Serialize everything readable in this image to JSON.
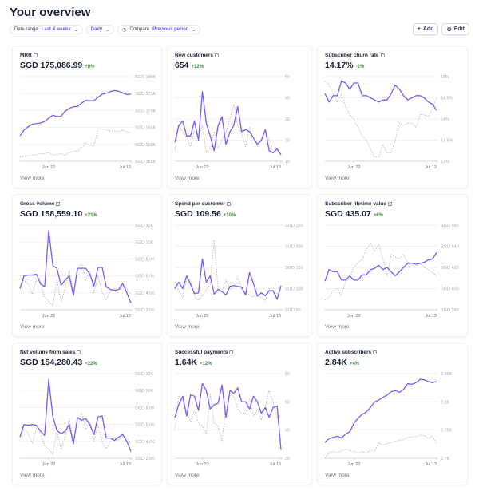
{
  "header": {
    "title": "Your overview",
    "add_label": "Add",
    "edit_label": "Edit"
  },
  "filters": {
    "date_range_label": "Date range",
    "date_range_value": "Last 4 weeks",
    "interval_value": "Daily",
    "compare_label": "Compare",
    "compare_value": "Previous period"
  },
  "colors": {
    "current": "#7a5af8",
    "previous": "#b3b7c2",
    "positive": "#3d8a3e"
  },
  "chart_data": [
    {
      "type": "line",
      "title": "MRR",
      "value": "SGD 175,086.99",
      "delta": "+8%",
      "yticks": [
        "SGD 180K",
        "SGD 175K",
        "SGD 170K",
        "SGD 165K",
        "SGD 160K",
        "SGD 155K"
      ],
      "ylim": [
        155,
        180
      ],
      "xticks": [
        "Jun 22",
        "Jul 13"
      ],
      "series": [
        {
          "values": [
            162.5,
            164.3,
            165.2,
            166,
            166.1,
            166.3,
            166.8,
            167.7,
            168.6,
            168.2,
            168.3,
            169.8,
            170.6,
            171.1,
            171.2,
            172.2,
            173,
            172.9,
            172.9,
            173.9,
            174.8,
            175.1,
            175.6,
            175.9,
            175.7,
            175.2,
            174.7,
            174.9
          ]
        },
        {
          "values": [
            156.3,
            156.5,
            156.6,
            156.8,
            157,
            157.2,
            157.3,
            157.5,
            156.9,
            157,
            157.3,
            156.8,
            157.5,
            158,
            158,
            159,
            160.5,
            159.8,
            159.4,
            164.5,
            164.6,
            164.2,
            164,
            163.9,
            163.8,
            164.2,
            163.8,
            163.2
          ]
        }
      ]
    },
    {
      "type": "line",
      "title": "New customers",
      "value": "654",
      "delta": "+12%",
      "yticks": [
        "50",
        "40",
        "30",
        "20",
        "10"
      ],
      "ylim": [
        10,
        50
      ],
      "xticks": [
        "Jun 22",
        "Jul 13"
      ],
      "series": [
        {
          "values": [
            19,
            27,
            29,
            22,
            22,
            29,
            20,
            43,
            28,
            22,
            15,
            27,
            31,
            18,
            24,
            27,
            36,
            24,
            25,
            24,
            21,
            18,
            20,
            25,
            15,
            14,
            16,
            13
          ]
        },
        {
          "values": [
            15,
            27,
            24,
            21,
            17,
            25,
            21,
            27,
            14,
            16,
            24,
            16,
            20,
            24,
            30,
            37,
            27,
            23,
            17,
            26,
            21,
            17,
            20,
            25,
            20,
            16,
            15,
            13
          ]
        }
      ]
    },
    {
      "type": "line",
      "title": "Subscriber churn rate",
      "value": "14.17%",
      "delta": "-2%",
      "yticks": [
        "15%",
        "14.5%",
        "14%",
        "13.5%",
        "13%"
      ],
      "ylim": [
        13,
        15
      ],
      "xticks": [
        "Jun 22",
        "Jul 13"
      ],
      "series": [
        {
          "values": [
            14.6,
            14.4,
            14.55,
            14.55,
            14.9,
            14.85,
            14.7,
            14.85,
            14.85,
            14.55,
            14.55,
            14.5,
            14.45,
            14.4,
            14.45,
            14.45,
            14.6,
            14.8,
            14.7,
            14.55,
            14.45,
            14.5,
            14.55,
            14.55,
            14.5,
            14.4,
            14.35,
            14.2
          ]
        },
        {
          "values": [
            14.9,
            14.8,
            14.6,
            14.4,
            14.6,
            14.3,
            14.1,
            14,
            13.8,
            13.6,
            13.5,
            13.3,
            13.1,
            13.1,
            13.4,
            13.2,
            13.2,
            13.5,
            13.9,
            13.85,
            13.9,
            13.9,
            13.8,
            14.1,
            14.1,
            14.05,
            14.25,
            14.5
          ]
        }
      ]
    },
    {
      "type": "line",
      "title": "Gross volume",
      "value": "SGD 158,559.10",
      "delta": "+21%",
      "yticks": [
        "SGD 12K",
        "SGD 10K",
        "SGD 8.0K",
        "SGD 6.0K",
        "SGD 4.0K",
        "SGD 2.0K"
      ],
      "ylim": [
        2,
        12
      ],
      "xticks": [
        "Jun 22",
        "Jul 13"
      ],
      "series": [
        {
          "values": [
            4.5,
            6,
            6.1,
            6.1,
            6.2,
            5.1,
            4.7,
            11.4,
            7.2,
            6.9,
            4.9,
            5.5,
            6,
            3.7,
            6.9,
            6.9,
            6.9,
            6.2,
            4.8,
            7,
            7,
            4.7,
            4.4,
            4.3,
            4.4,
            5.1,
            4,
            2.8
          ]
        },
        {
          "values": [
            4.6,
            5.5,
            5,
            3.8,
            5.6,
            5,
            3.5,
            3,
            2.5,
            5.5,
            3,
            4.5,
            6.8,
            4,
            6.8,
            7.5,
            5.5,
            6.5,
            4,
            6,
            4,
            3.2,
            4.2,
            4.5,
            4.2,
            4.8,
            4.5,
            3.8
          ]
        }
      ]
    },
    {
      "type": "line",
      "title": "Spend per customer",
      "value": "SGD 109.56",
      "delta": "+10%",
      "yticks": [
        "SGD 250",
        "SGD 200",
        "SGD 150",
        "SGD 100",
        "SGD 50"
      ],
      "ylim": [
        50,
        250
      ],
      "xticks": [
        "Jun 22",
        "Jul 13"
      ],
      "series": [
        {
          "values": [
            100,
            115,
            100,
            130,
            110,
            88,
            90,
            170,
            115,
            130,
            87,
            98,
            93,
            85,
            105,
            107,
            105,
            103,
            85,
            138,
            112,
            82,
            90,
            83,
            95,
            95,
            75,
            107
          ]
        },
        {
          "values": [
            115,
            95,
            78,
            125,
            120,
            82,
            72,
            85,
            98,
            110,
            215,
            100,
            92,
            120,
            98,
            105,
            128,
            100,
            92,
            85,
            80,
            88,
            80,
            72,
            100,
            95,
            88,
            95
          ]
        }
      ]
    },
    {
      "type": "line",
      "title": "Subscriber lifetime value",
      "value": "SGD 435.07",
      "delta": "+6%",
      "yticks": [
        "SGD 460",
        "SGD 440",
        "SGD 420",
        "SGD 400",
        "SGD 380"
      ],
      "ylim": [
        380,
        460
      ],
      "xticks": [
        "Jun 22",
        "Jul 13"
      ],
      "series": [
        {
          "values": [
            407,
            418,
            416,
            416,
            408,
            408,
            412,
            408,
            408,
            413,
            413,
            418,
            419,
            422,
            418,
            420,
            416,
            412,
            416,
            420,
            424,
            424,
            423,
            424,
            425,
            427,
            428,
            434
          ]
        },
        {
          "values": [
            389,
            392,
            398,
            400,
            394,
            406,
            410,
            420,
            425,
            427,
            437,
            443,
            435,
            442,
            428,
            412,
            432,
            430,
            428,
            432,
            425,
            422,
            420,
            424,
            420,
            418,
            415,
            412
          ]
        }
      ]
    },
    {
      "type": "line",
      "title": "Net volume from sales",
      "value": "SGD 154,280.43",
      "delta": "+22%",
      "yticks": [
        "SGD 12K",
        "SGD 10K",
        "SGD 8.0K",
        "SGD 6.0K",
        "SGD 4.0K",
        "SGD 2.0K"
      ],
      "ylim": [
        2,
        12
      ],
      "xticks": [
        "Jun 22",
        "Jul 13"
      ],
      "series": [
        {
          "values": [
            4.5,
            6,
            5.9,
            6,
            5.9,
            5.2,
            4.7,
            11.3,
            6.9,
            5.3,
            4.9,
            5.2,
            6,
            3.7,
            6.8,
            6.5,
            6.7,
            6,
            4.8,
            6.9,
            7,
            4.4,
            4.4,
            4.1,
            4.5,
            4.8,
            4,
            2.8
          ]
        },
        {
          "values": [
            4.6,
            5.4,
            5,
            3.8,
            5.5,
            5,
            3.5,
            3,
            2.5,
            5.3,
            3,
            4.5,
            6.7,
            4,
            6.7,
            7.4,
            5.4,
            6.4,
            4,
            5.9,
            4,
            3.1,
            4.1,
            4.4,
            4.1,
            4.7,
            4.4,
            3.8
          ]
        }
      ]
    },
    {
      "type": "line",
      "title": "Successful payments",
      "value": "1.64K",
      "delta": "+12%",
      "yticks": [
        "80",
        "60",
        "40",
        "20"
      ],
      "ylim": [
        20,
        80
      ],
      "xticks": [
        "Jun 22",
        "Jul 13"
      ],
      "series": [
        {
          "values": [
            49,
            58,
            64,
            50,
            65,
            64,
            54,
            73,
            68,
            55,
            58,
            59,
            72,
            49,
            68,
            66,
            70,
            60,
            60,
            55,
            64,
            60,
            52,
            56,
            49,
            56,
            57,
            26
          ]
        },
        {
          "values": [
            40,
            64,
            61,
            52,
            46,
            54,
            45,
            43,
            37,
            66,
            45,
            43,
            32,
            59,
            65,
            64,
            55,
            52,
            52,
            62,
            50,
            55,
            47,
            57,
            68,
            60,
            48,
            50
          ]
        }
      ]
    },
    {
      "type": "line",
      "title": "Active subscribers",
      "value": "2.84K",
      "delta": "+4%",
      "yticks": [
        "2.85K",
        "2.8K",
        "2.75K",
        "2.7K"
      ],
      "ylim": [
        2.7,
        2.85
      ],
      "xticks": [
        "Jun 22",
        "Jul 13"
      ],
      "series": [
        {
          "values": [
            2.728,
            2.735,
            2.737,
            2.739,
            2.736,
            2.743,
            2.747,
            2.762,
            2.771,
            2.778,
            2.782,
            2.79,
            2.8,
            2.803,
            2.808,
            2.812,
            2.818,
            2.82,
            2.817,
            2.822,
            2.832,
            2.831,
            2.834,
            2.84,
            2.839,
            2.836,
            2.834,
            2.836
          ]
        },
        {
          "values": [
            2.7,
            2.71,
            2.712,
            2.71,
            2.713,
            2.716,
            2.714,
            2.712,
            2.709,
            2.712,
            2.709,
            2.715,
            2.712,
            2.728,
            2.723,
            2.726,
            2.728,
            2.73,
            2.732,
            2.733,
            2.737,
            2.738,
            2.738,
            2.741,
            2.74,
            2.735,
            2.74,
            2.725
          ]
        }
      ]
    }
  ],
  "view_more_label": "View more"
}
